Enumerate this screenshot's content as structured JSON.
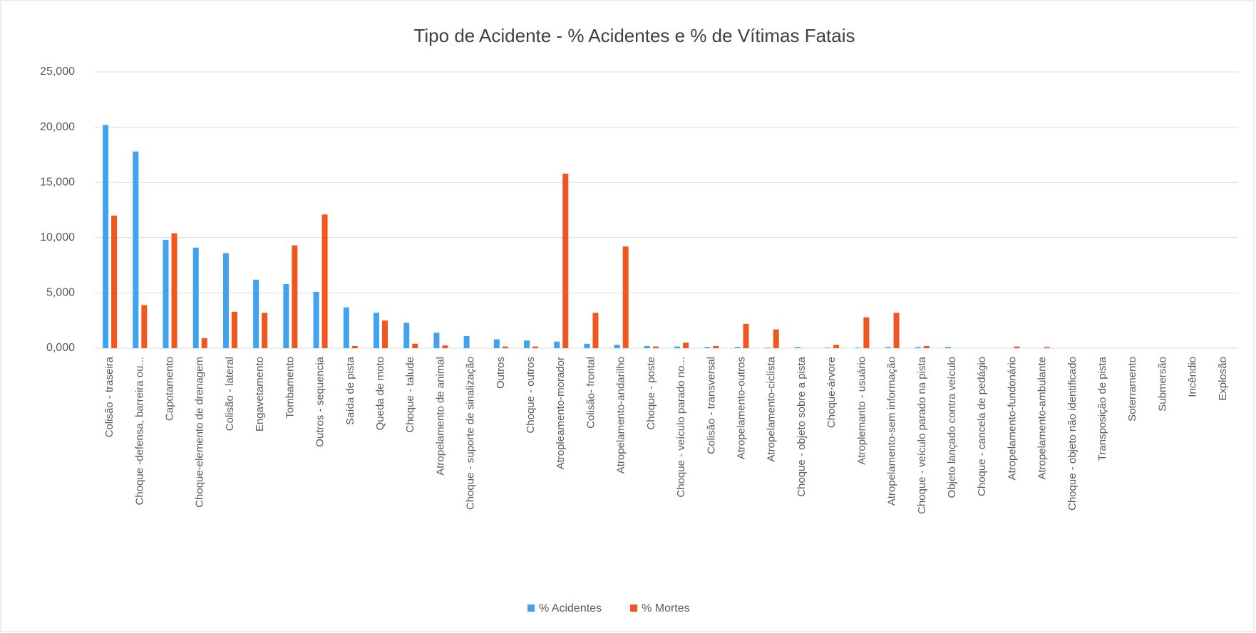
{
  "chart_data": {
    "type": "bar",
    "title": "Tipo de Acidente - % Acidentes  e % de Vítimas Fatais",
    "categories": [
      "Colisão - traseira",
      "Choque -defensa, barreira ou...",
      "Capotamento",
      "Choque-elemento de drenagem",
      "Colisão - lateral",
      "Engavetamento",
      "Tombamento",
      "Outros - sequencia",
      "Saída de pista",
      "Queda de moto",
      "Choque - talude",
      "Atropelamento de animal",
      "Choque - suporte de sinalização",
      "Outros",
      "Choque - outros",
      "Atropleamento-morador",
      "Colisão- frontal",
      "Atropelamento-andarilho",
      "Choque - poste",
      "Choque - veículo parado no...",
      "Colisão - transversal",
      "Atropelamento-outros",
      "Atropelamento-ciclista",
      "Choque - objeto sobre a pista",
      "Choque-árvore",
      "Atroplemanto - usuário",
      "Atropelamento-sem informação",
      "Choque - veículo parado na pista",
      "Objeto lançado contra veículo",
      "Choque - cancela de pedágio",
      "Atropelamento-fundonário",
      "Atropelamento-ambulante",
      "Choque - objeto não identificado",
      "Transposição de pista",
      "Soterramento",
      "Submersão",
      "Incêndio",
      "Explosão"
    ],
    "series": [
      {
        "name": "% Acidentes",
        "color": "#41a3f0",
        "values": [
          20.2,
          17.8,
          9.8,
          9.1,
          8.6,
          6.2,
          5.8,
          5.1,
          3.7,
          3.2,
          2.3,
          1.4,
          1.1,
          0.8,
          0.7,
          0.6,
          0.4,
          0.3,
          0.2,
          0.15,
          0.1,
          0.1,
          0.05,
          0.1,
          0.05,
          0.05,
          0.1,
          0.1,
          0.1,
          0,
          0,
          0,
          0,
          0,
          0,
          0,
          0,
          0
        ]
      },
      {
        "name": "% Mortes",
        "color": "#f0561e",
        "values": [
          12.0,
          3.9,
          10.4,
          0.9,
          3.3,
          3.2,
          9.3,
          12.1,
          0.2,
          2.5,
          0.4,
          0.25,
          0,
          0.15,
          0.15,
          15.8,
          3.2,
          9.2,
          0.15,
          0.5,
          0.2,
          2.2,
          1.7,
          0,
          0.3,
          2.8,
          3.2,
          0.2,
          0,
          0,
          0.15,
          0.1,
          0,
          0,
          0,
          0,
          0,
          0
        ]
      }
    ],
    "ylim": [
      0,
      25
    ],
    "yticks": [
      {
        "value": 0,
        "label": "0,000"
      },
      {
        "value": 5,
        "label": "5,000"
      },
      {
        "value": 10,
        "label": "10,000"
      },
      {
        "value": 15,
        "label": "15,000"
      },
      {
        "value": 20,
        "label": "20,000"
      },
      {
        "value": 25,
        "label": "25,000"
      }
    ],
    "grid": true,
    "legend": "bottom"
  }
}
